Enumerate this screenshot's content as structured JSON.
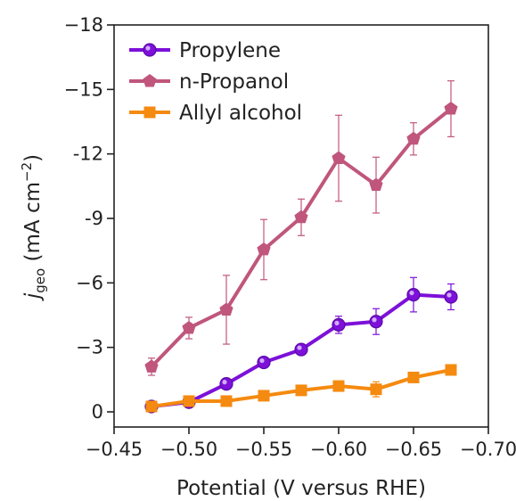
{
  "chart_data": {
    "type": "line",
    "xlabel": "Potential (V versus RHE)",
    "ylabel": {
      "main": "j",
      "sub": "geo",
      "unit_open": " (mA cm",
      "unit_sup": "−2",
      "unit_close": ")"
    },
    "xlim": [
      -0.45,
      -0.7
    ],
    "ylim": [
      0,
      -18
    ],
    "x_ticks": [
      -0.45,
      -0.5,
      -0.55,
      -0.6,
      -0.65,
      -0.7
    ],
    "x_tick_labels": [
      "−0.45",
      "−0.50",
      "−0.55",
      "−0.60",
      "−0.65",
      "−0.70"
    ],
    "y_ticks": [
      0,
      -3,
      -6,
      -9,
      -12,
      -15,
      -18
    ],
    "y_tick_labels": [
      "0",
      "−3",
      "−6",
      "-9",
      "-12",
      "−15",
      "−18"
    ],
    "grid": false,
    "legend_position": "top-left",
    "x": [
      -0.475,
      -0.5,
      -0.525,
      -0.55,
      -0.575,
      -0.6,
      -0.625,
      -0.65,
      -0.675
    ],
    "series": [
      {
        "name": "n-Propanol",
        "color": "#c0567c",
        "marker": "pentagon",
        "values": [
          -2.1,
          -3.9,
          -4.75,
          -7.55,
          -9.05,
          -11.8,
          -10.55,
          -12.7,
          -14.1
        ],
        "error": [
          0.4,
          0.5,
          1.6,
          1.4,
          0.85,
          2.0,
          1.3,
          0.75,
          1.3
        ]
      },
      {
        "name": "Propylene",
        "color": "#7d10d9",
        "marker": "circle",
        "values": [
          -0.25,
          -0.45,
          -1.3,
          -2.3,
          -2.9,
          -4.05,
          -4.2,
          -5.45,
          -5.35
        ],
        "error": [
          0.2,
          0.2,
          0.15,
          0.2,
          0.15,
          0.4,
          0.6,
          0.8,
          0.6
        ]
      },
      {
        "name": "Allyl alcohol",
        "color": "#f58a10",
        "marker": "square",
        "values": [
          -0.25,
          -0.5,
          -0.5,
          -0.75,
          -1.0,
          -1.2,
          -1.05,
          -1.6,
          -1.95
        ],
        "error": [
          0.15,
          0.15,
          0.1,
          0.15,
          0.15,
          0.15,
          0.35,
          0.2,
          0.15
        ]
      }
    ],
    "legend_order": [
      "Propylene",
      "n-Propanol",
      "Allyl alcohol"
    ]
  }
}
